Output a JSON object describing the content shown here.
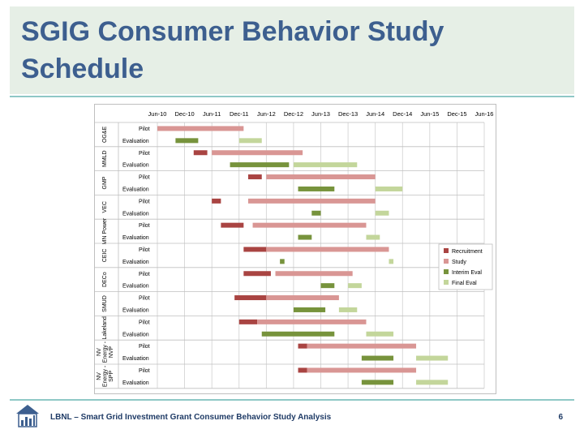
{
  "slide": {
    "title": "SGIG Consumer Behavior Study Schedule",
    "footer": "LBNL – Smart Grid Investment Grant Consumer Behavior Study Analysis",
    "page_number": "6",
    "logo_icon": "house-chart-logo-icon"
  },
  "colors": {
    "title": "#3d5f8f",
    "title_band": "#e6efe6",
    "rule": "#8fc8c6",
    "Recruitment": "#a94442",
    "Study": "#d99694",
    "Interim Eval": "#77933c",
    "Final Eval": "#c3d69b"
  },
  "chart_data": {
    "type": "gantt",
    "title": "",
    "x_ticks": [
      "Jun-10",
      "Dec-10",
      "Jun-11",
      "Dec-11",
      "Jun-12",
      "Dec-12",
      "Jun-13",
      "Dec-13",
      "Jun-14",
      "Dec-14",
      "Jun-15",
      "Dec-15",
      "Jun-16"
    ],
    "x_range": [
      "2010-06",
      "2016-06"
    ],
    "grid": true,
    "legend": {
      "placement": "right",
      "entries": [
        "Recruitment",
        "Study",
        "Interim Eval",
        "Final Eval"
      ]
    },
    "groups": [
      {
        "name": "OG&E",
        "rows": [
          {
            "label": "Pilot",
            "bars": [
              {
                "series": "Study",
                "start": "2010-06",
                "end": "2012-01"
              }
            ]
          },
          {
            "label": "Evaluation",
            "bars": [
              {
                "series": "Interim Eval",
                "start": "2010-10",
                "end": "2011-03"
              },
              {
                "series": "Final Eval",
                "start": "2011-12",
                "end": "2012-05"
              }
            ]
          }
        ]
      },
      {
        "name": "MMLD",
        "rows": [
          {
            "label": "Pilot",
            "bars": [
              {
                "series": "Recruitment",
                "start": "2011-02",
                "end": "2011-05"
              },
              {
                "series": "Study",
                "start": "2011-06",
                "end": "2013-02"
              }
            ]
          },
          {
            "label": "Evaluation",
            "bars": [
              {
                "series": "Interim Eval",
                "start": "2011-10",
                "end": "2012-11"
              },
              {
                "series": "Final Eval",
                "start": "2012-12",
                "end": "2014-02"
              }
            ]
          }
        ]
      },
      {
        "name": "GMP",
        "rows": [
          {
            "label": "Pilot",
            "bars": [
              {
                "series": "Recruitment",
                "start": "2012-02",
                "end": "2012-05"
              },
              {
                "series": "Study",
                "start": "2012-06",
                "end": "2014-06"
              }
            ]
          },
          {
            "label": "Evaluation",
            "bars": [
              {
                "series": "Interim Eval",
                "start": "2013-01",
                "end": "2013-09"
              },
              {
                "series": "Final Eval",
                "start": "2014-06",
                "end": "2014-12"
              }
            ]
          }
        ]
      },
      {
        "name": "VEC",
        "rows": [
          {
            "label": "Pilot",
            "bars": [
              {
                "series": "Recruitment",
                "start": "2011-06",
                "end": "2011-08"
              },
              {
                "series": "Study",
                "start": "2012-02",
                "end": "2014-06"
              }
            ]
          },
          {
            "label": "Evaluation",
            "bars": [
              {
                "series": "Interim Eval",
                "start": "2013-04",
                "end": "2013-06"
              },
              {
                "series": "Final Eval",
                "start": "2014-06",
                "end": "2014-09"
              }
            ]
          }
        ]
      },
      {
        "name": "MN Power",
        "rows": [
          {
            "label": "Pilot",
            "bars": [
              {
                "series": "Recruitment",
                "start": "2011-08",
                "end": "2012-01"
              },
              {
                "series": "Study",
                "start": "2012-03",
                "end": "2014-04"
              }
            ]
          },
          {
            "label": "Evaluation",
            "bars": [
              {
                "series": "Interim Eval",
                "start": "2013-01",
                "end": "2013-04"
              },
              {
                "series": "Final Eval",
                "start": "2014-04",
                "end": "2014-07"
              }
            ]
          }
        ]
      },
      {
        "name": "CEIC",
        "rows": [
          {
            "label": "Pilot",
            "bars": [
              {
                "series": "Recruitment",
                "start": "2012-01",
                "end": "2012-06"
              },
              {
                "series": "Study",
                "start": "2012-06",
                "end": "2014-09"
              }
            ]
          },
          {
            "label": "Evaluation",
            "bars": [
              {
                "series": "Interim Eval",
                "start": "2012-09",
                "end": "2012-10"
              },
              {
                "series": "Final Eval",
                "start": "2014-09",
                "end": "2014-10"
              }
            ]
          }
        ]
      },
      {
        "name": "DECo",
        "rows": [
          {
            "label": "Pilot",
            "bars": [
              {
                "series": "Recruitment",
                "start": "2012-01",
                "end": "2012-07"
              },
              {
                "series": "Study",
                "start": "2012-08",
                "end": "2014-01"
              }
            ]
          },
          {
            "label": "Evaluation",
            "bars": [
              {
                "series": "Interim Eval",
                "start": "2013-06",
                "end": "2013-09"
              },
              {
                "series": "Final Eval",
                "start": "2013-12",
                "end": "2014-03"
              }
            ]
          }
        ]
      },
      {
        "name": "SMUD",
        "rows": [
          {
            "label": "Pilot",
            "bars": [
              {
                "series": "Recruitment",
                "start": "2011-11",
                "end": "2012-06"
              },
              {
                "series": "Study",
                "start": "2012-06",
                "end": "2013-10"
              }
            ]
          },
          {
            "label": "Evaluation",
            "bars": [
              {
                "series": "Interim Eval",
                "start": "2012-12",
                "end": "2013-07"
              },
              {
                "series": "Final Eval",
                "start": "2013-10",
                "end": "2014-02"
              }
            ]
          }
        ]
      },
      {
        "name": "Lakeland",
        "rows": [
          {
            "label": "Pilot",
            "bars": [
              {
                "series": "Recruitment",
                "start": "2011-12",
                "end": "2012-04"
              },
              {
                "series": "Study",
                "start": "2012-04",
                "end": "2014-04"
              }
            ]
          },
          {
            "label": "Evaluation",
            "bars": [
              {
                "series": "Interim Eval",
                "start": "2012-05",
                "end": "2013-09"
              },
              {
                "series": "Final Eval",
                "start": "2014-04",
                "end": "2014-10"
              }
            ]
          }
        ]
      },
      {
        "name": "NV Energy - NVP",
        "rows": [
          {
            "label": "Pilot",
            "bars": [
              {
                "series": "Recruitment",
                "start": "2013-01",
                "end": "2013-03"
              },
              {
                "series": "Study",
                "start": "2013-03",
                "end": "2015-03"
              }
            ]
          },
          {
            "label": "Evaluation",
            "bars": [
              {
                "series": "Interim Eval",
                "start": "2014-03",
                "end": "2014-10"
              },
              {
                "series": "Final Eval",
                "start": "2015-03",
                "end": "2015-10"
              }
            ]
          }
        ]
      },
      {
        "name": "NV Energy - SPP",
        "rows": [
          {
            "label": "Pilot",
            "bars": [
              {
                "series": "Recruitment",
                "start": "2013-01",
                "end": "2013-03"
              },
              {
                "series": "Study",
                "start": "2013-03",
                "end": "2015-03"
              }
            ]
          },
          {
            "label": "Evaluation",
            "bars": [
              {
                "series": "Interim Eval",
                "start": "2014-03",
                "end": "2014-10"
              },
              {
                "series": "Final Eval",
                "start": "2015-03",
                "end": "2015-10"
              }
            ]
          }
        ]
      }
    ]
  }
}
